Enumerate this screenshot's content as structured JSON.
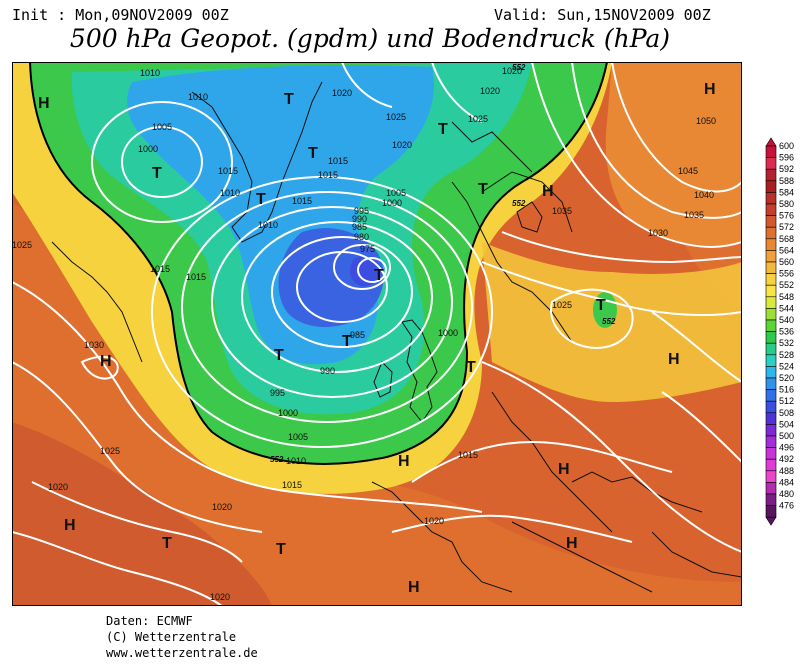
{
  "header": {
    "init": "Init : Mon,09NOV2009 00Z",
    "valid": "Valid: Sun,15NOV2009 00Z",
    "title": "500 hPa Geopot. (gpdm) und Bodendruck (hPa)"
  },
  "footer": {
    "line1": "Daten: ECMWF",
    "line2": "(C) Wetterzentrale",
    "line3": "www.wetterzentrale.de"
  },
  "colorbar": {
    "levels": [
      "600",
      "596",
      "592",
      "588",
      "584",
      "580",
      "576",
      "572",
      "568",
      "564",
      "560",
      "556",
      "552",
      "548",
      "544",
      "540",
      "536",
      "532",
      "528",
      "524",
      "520",
      "516",
      "512",
      "508",
      "504",
      "500",
      "496",
      "492",
      "488",
      "484",
      "480",
      "476"
    ],
    "colors": [
      "#c8103c",
      "#dc2a52",
      "#b42030",
      "#a81f23",
      "#b8302a",
      "#c53f2d",
      "#d3582e",
      "#df6f2f",
      "#e88734",
      "#f1a03a",
      "#f3b93c",
      "#f6d23e",
      "#f8e545",
      "#d8eb3c",
      "#9ce036",
      "#5bd534",
      "#2fc94b",
      "#28cc8a",
      "#2ad0c2",
      "#2fb6eb",
      "#2f93eb",
      "#3270e7",
      "#3b4ee0",
      "#5033d7",
      "#7a2bd5",
      "#a22ed8",
      "#c733d6",
      "#e13bd5",
      "#ea46c8",
      "#b52bb0",
      "#7d1d84",
      "#5a1560"
    ]
  },
  "map": {
    "high_labels": [
      "H",
      "H",
      "H",
      "H",
      "H",
      "H",
      "H",
      "H",
      "H",
      "H"
    ],
    "low_labels": [
      "T",
      "T",
      "T",
      "T",
      "T",
      "T",
      "T",
      "T",
      "T",
      "T",
      "T",
      "T",
      "T"
    ],
    "pressure_labels": [
      "1010",
      "1010",
      "1005",
      "1000",
      "1015",
      "1010",
      "1015",
      "1020",
      "1025",
      "1020",
      "1015",
      "1020",
      "1025",
      "1015",
      "1010",
      "1015",
      "1005",
      "1000",
      "995",
      "990",
      "985",
      "980",
      "975",
      "985",
      "990",
      "995",
      "1000",
      "1005",
      "1010",
      "1015",
      "1020",
      "1000",
      "1025",
      "1030",
      "1025",
      "1035",
      "1030",
      "1035",
      "1040",
      "1045",
      "1050",
      "1025",
      "1020",
      "1020",
      "1020",
      "1015",
      "1015",
      "1020"
    ],
    "height_labels": [
      "552",
      "552",
      "552",
      "552"
    ]
  }
}
